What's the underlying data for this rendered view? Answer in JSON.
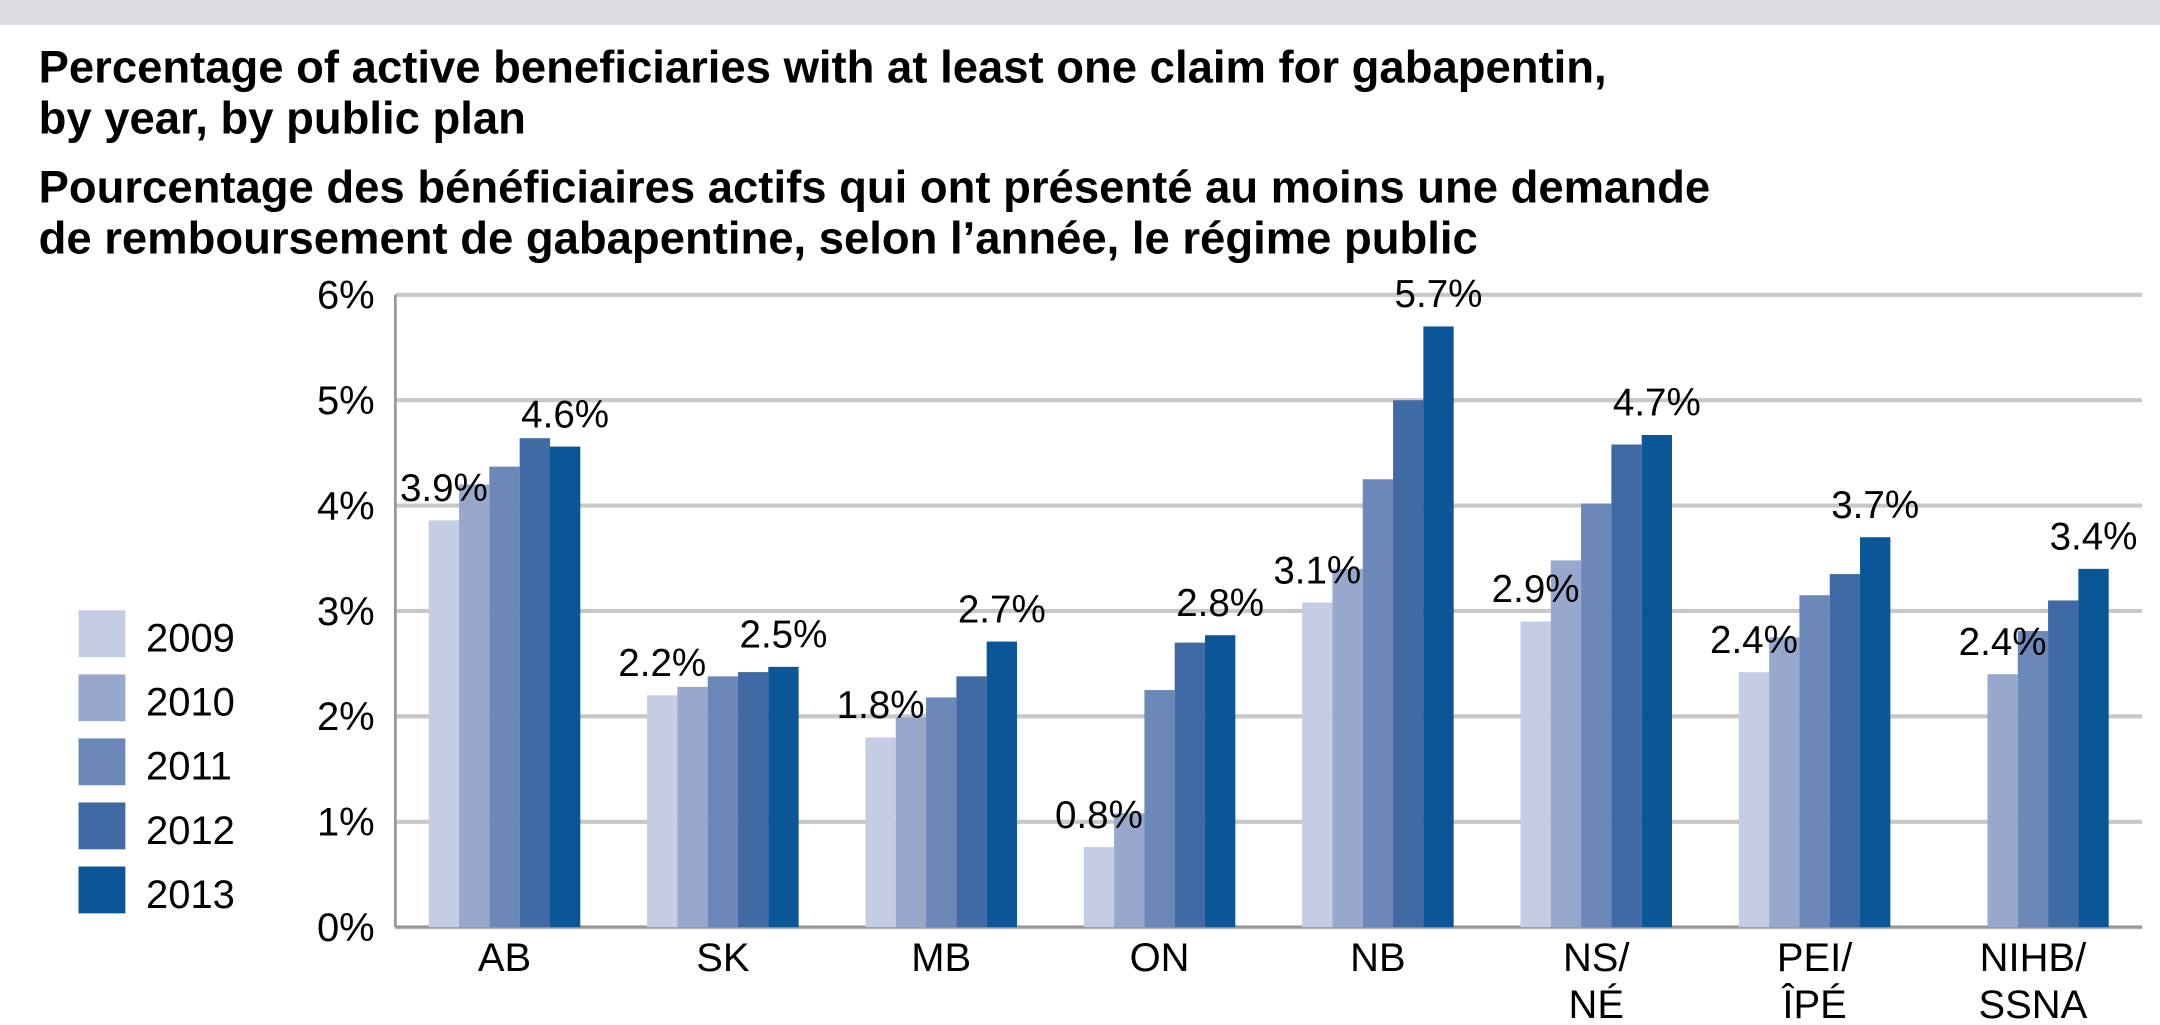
{
  "chart_data": {
    "type": "bar",
    "title": [
      "Percentage of active beneficiaries with at least one claim for gabapentin,",
      "by year, by public plan"
    ],
    "subtitle": [
      "Pourcentage des bénéficiaires actifs qui ont présenté au moins une demande",
      "de remboursement de gabapentine, selon l’année, le régime public"
    ],
    "categories": [
      [
        "AB"
      ],
      [
        "SK"
      ],
      [
        "MB"
      ],
      [
        "ON"
      ],
      [
        "NB"
      ],
      [
        "NS/",
        "NÉ"
      ],
      [
        "PEI/",
        "ÎPÉ"
      ],
      [
        "NIHB/",
        "SSNA"
      ]
    ],
    "series": [
      {
        "name": "2009",
        "color": "#c5cde4",
        "values": [
          3.86,
          2.2,
          1.8,
          0.76,
          3.08,
          2.9,
          2.42,
          null
        ],
        "value_labels": [
          "3.9%",
          "2.2%",
          "1.8%",
          "0.8%",
          "3.1%",
          "2.9%",
          "2.4%",
          null
        ]
      },
      {
        "name": "2010",
        "color": "#97a8cc",
        "values": [
          4.2,
          2.28,
          1.99,
          1.08,
          3.4,
          3.48,
          2.75,
          2.4
        ],
        "value_labels": [
          null,
          null,
          null,
          null,
          null,
          null,
          null,
          "2.4%"
        ]
      },
      {
        "name": "2011",
        "color": "#6c88b8",
        "values": [
          4.37,
          2.38,
          2.18,
          2.25,
          4.25,
          4.02,
          3.15,
          2.81
        ]
      },
      {
        "name": "2012",
        "color": "#3f6aa3",
        "values": [
          4.64,
          2.42,
          2.38,
          2.7,
          5.0,
          4.58,
          3.35,
          3.1
        ]
      },
      {
        "name": "2013",
        "color": "#0a5697",
        "values": [
          4.56,
          2.47,
          2.71,
          2.77,
          5.7,
          4.67,
          3.7,
          3.4
        ],
        "value_labels": [
          "4.6%",
          "2.5%",
          "2.7%",
          "2.8%",
          "5.7%",
          "4.7%",
          "3.7%",
          "3.4%"
        ]
      }
    ],
    "ylim": [
      0,
      6
    ],
    "yticks": [
      {
        "value": 0,
        "label": "0%"
      },
      {
        "value": 1,
        "label": "1%"
      },
      {
        "value": 2,
        "label": "2%"
      },
      {
        "value": 3,
        "label": "3%"
      },
      {
        "value": 4,
        "label": "4%"
      },
      {
        "value": 5,
        "label": "5%"
      },
      {
        "value": 6,
        "label": "6%"
      }
    ],
    "grid": true,
    "legend": "left"
  }
}
